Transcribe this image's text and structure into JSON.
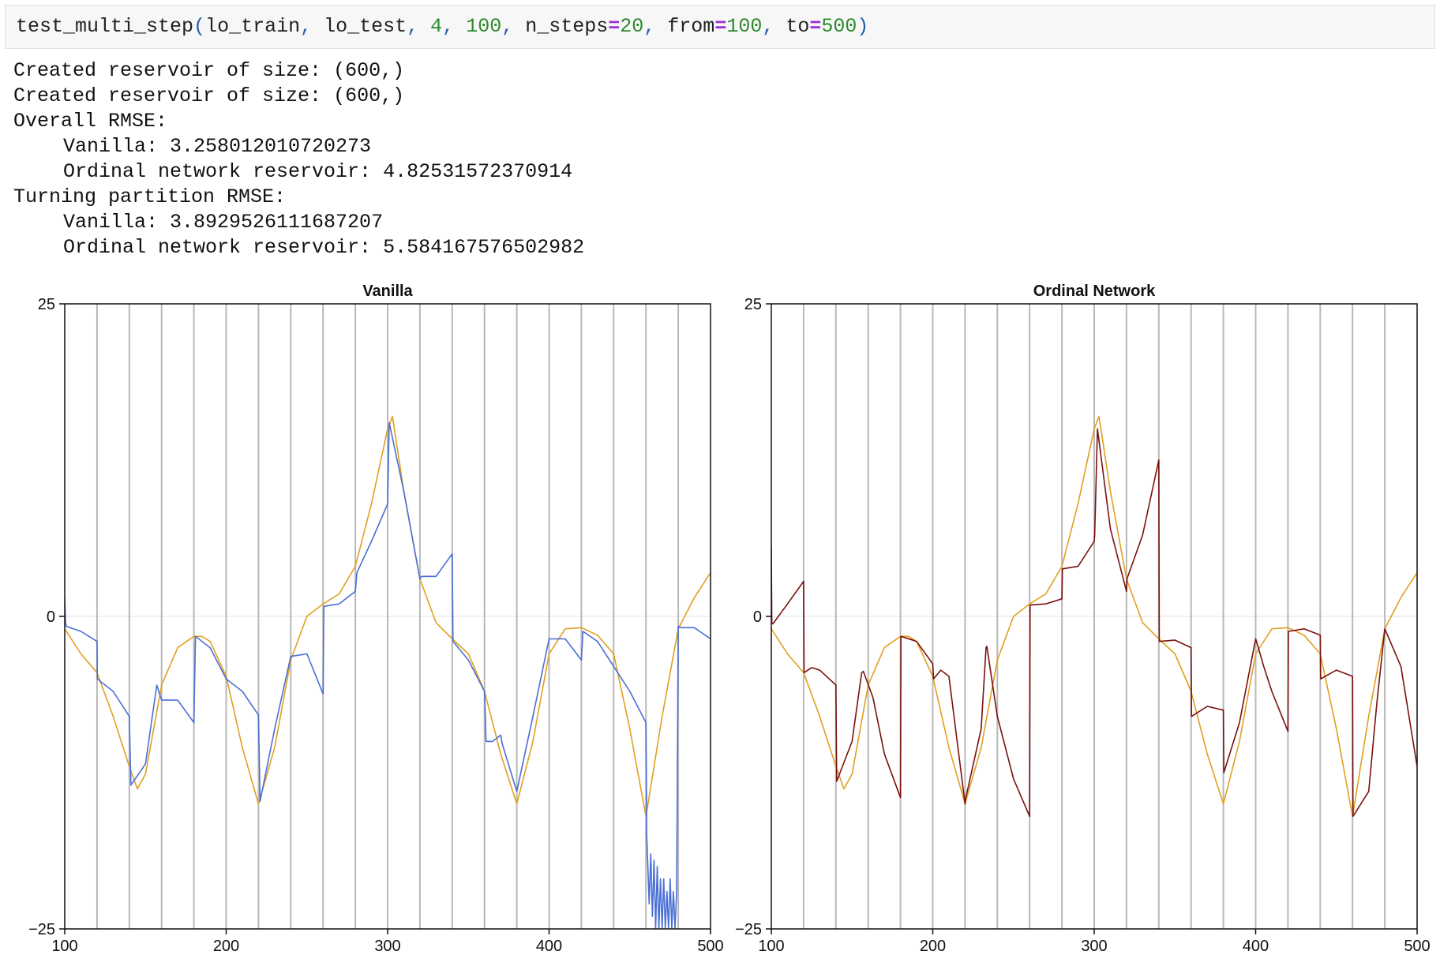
{
  "cell": {
    "code_tokens": [
      {
        "t": "test_multi_step",
        "c": "name"
      },
      {
        "t": "(",
        "c": "paren"
      },
      {
        "t": "lo_train",
        "c": "name"
      },
      {
        "t": ", ",
        "c": "punct"
      },
      {
        "t": "lo_test",
        "c": "name"
      },
      {
        "t": ", ",
        "c": "punct"
      },
      {
        "t": "4",
        "c": "num"
      },
      {
        "t": ", ",
        "c": "punct"
      },
      {
        "t": "100",
        "c": "num"
      },
      {
        "t": ", ",
        "c": "punct"
      },
      {
        "t": "n_steps",
        "c": "name"
      },
      {
        "t": "=",
        "c": "op"
      },
      {
        "t": "20",
        "c": "num"
      },
      {
        "t": ", ",
        "c": "punct"
      },
      {
        "t": "from",
        "c": "name"
      },
      {
        "t": "=",
        "c": "op"
      },
      {
        "t": "100",
        "c": "num"
      },
      {
        "t": ", ",
        "c": "punct"
      },
      {
        "t": "to",
        "c": "name"
      },
      {
        "t": "=",
        "c": "op"
      },
      {
        "t": "500",
        "c": "num"
      },
      {
        "t": ")",
        "c": "paren"
      }
    ]
  },
  "output": {
    "lines": [
      {
        "text": "Created reservoir of size: (600,)",
        "indent": false
      },
      {
        "text": "Created reservoir of size: (600,)",
        "indent": false
      },
      {
        "text": "Overall RMSE:",
        "indent": false
      },
      {
        "text": "Vanilla: 3.258012010720273",
        "indent": true
      },
      {
        "text": "Ordinal network reservoir: 4.82531572370914",
        "indent": true
      },
      {
        "text": "Turning partition RMSE:",
        "indent": false
      },
      {
        "text": "Vanilla: 3.8929526111687207",
        "indent": true
      },
      {
        "text": "Ordinal network reservoir: 5.584167576502982",
        "indent": true
      }
    ]
  },
  "colors": {
    "truth": "#e0a020",
    "vanilla": "#4a6fd4",
    "ordinal": "#7a1010",
    "vline": "#b8b8b8",
    "zero": "#e0e0e0",
    "axis": "#111111"
  },
  "chart_data": [
    {
      "type": "line",
      "title": "Vanilla",
      "xlim": [
        100,
        500
      ],
      "ylim": [
        -25,
        25
      ],
      "xticks": [
        100,
        200,
        300,
        400,
        500
      ],
      "yticks": [
        -25,
        0,
        25
      ],
      "yticklabels": [
        "−25",
        "0",
        "25"
      ],
      "vlines": [
        120,
        140,
        160,
        180,
        200,
        220,
        240,
        260,
        280,
        300,
        320,
        340,
        360,
        380,
        400,
        420,
        440,
        460,
        480
      ],
      "grid": "vertical lines every 20 steps",
      "series": [
        {
          "role": "truth",
          "x": [
            100,
            110,
            120,
            130,
            140,
            145,
            150,
            160,
            170,
            180,
            185,
            190,
            200,
            210,
            220,
            230,
            240,
            250,
            260,
            270,
            280,
            290,
            300,
            303,
            310,
            320,
            330,
            340,
            350,
            360,
            370,
            380,
            390,
            400,
            410,
            420,
            430,
            440,
            450,
            460,
            470,
            480,
            490,
            500
          ],
          "y": [
            -1,
            -3,
            -4.5,
            -8,
            -12,
            -13.8,
            -12.6,
            -5.5,
            -2.5,
            -1.6,
            -1.6,
            -2,
            -4.8,
            -10.5,
            -15,
            -10.5,
            -3.5,
            0,
            1,
            1.8,
            4,
            9,
            15,
            16,
            10,
            3,
            -0.5,
            -1.8,
            -3,
            -6,
            -11,
            -15,
            -10,
            -3,
            -1,
            -0.9,
            -1.5,
            -3,
            -9,
            -16,
            -8,
            -1,
            1.5,
            3.5
          ]
        },
        {
          "role": "prediction",
          "x": [
            100,
            100.5,
            101,
            110,
            120,
            120.2,
            130,
            140,
            141,
            150,
            157,
            160,
            170,
            180,
            181,
            190,
            200,
            210,
            220,
            221,
            230,
            240,
            250,
            260,
            260.5,
            270,
            280,
            281,
            290,
            300,
            301,
            310,
            320,
            321,
            330,
            340,
            340.5,
            350,
            360,
            361,
            365,
            370,
            371,
            380,
            390,
            400,
            410,
            420,
            421,
            430,
            440,
            450,
            460,
            460.5,
            462,
            463,
            464,
            465,
            466,
            467,
            468,
            469,
            470,
            471,
            472,
            473,
            474,
            475,
            476,
            477,
            478,
            479,
            480,
            482,
            490,
            500
          ],
          "y": [
            1.5,
            -0.5,
            -0.8,
            -1.2,
            -2,
            -5,
            -6,
            -8,
            -13.5,
            -11.8,
            -5.5,
            -6.7,
            -6.7,
            -8.5,
            -1.6,
            -2.5,
            -5,
            -6,
            -7.9,
            -14.8,
            -9,
            -3.2,
            -3,
            -6.2,
            0.8,
            1,
            2,
            3.5,
            6,
            9,
            15.5,
            10,
            3,
            3.2,
            3.2,
            5,
            -2,
            -3.5,
            -6,
            -10,
            -10,
            -9.5,
            -10.2,
            -14,
            -8,
            -1.8,
            -1.8,
            -3.5,
            -1.2,
            -2,
            -4,
            -6,
            -8.5,
            -17.5,
            -23,
            -19,
            -24,
            -19.5,
            -25,
            -20,
            -25,
            -21,
            -25,
            -21,
            -25,
            -22,
            -25,
            -21,
            -25,
            -22,
            -25,
            -22,
            -0.8,
            -0.9,
            -0.9,
            -1.8
          ]
        }
      ]
    },
    {
      "type": "line",
      "title": "Ordinal Network",
      "xlim": [
        100,
        500
      ],
      "ylim": [
        -25,
        25
      ],
      "xticks": [
        100,
        200,
        300,
        400,
        500
      ],
      "yticks": [
        -25,
        0,
        25
      ],
      "yticklabels": [
        "−25",
        "0",
        "25"
      ],
      "vlines": [
        120,
        140,
        160,
        180,
        200,
        220,
        240,
        260,
        280,
        300,
        320,
        340,
        360,
        380,
        400,
        420,
        440,
        460,
        480
      ],
      "grid": "vertical lines every 20 steps",
      "series": [
        {
          "role": "truth",
          "x": [
            100,
            110,
            120,
            130,
            140,
            145,
            150,
            160,
            170,
            180,
            185,
            190,
            200,
            210,
            220,
            230,
            240,
            250,
            260,
            270,
            280,
            290,
            300,
            303,
            310,
            320,
            330,
            340,
            350,
            360,
            370,
            380,
            390,
            400,
            410,
            420,
            430,
            440,
            450,
            460,
            470,
            480,
            490,
            500
          ],
          "y": [
            -1,
            -3,
            -4.5,
            -8,
            -12,
            -13.8,
            -12.6,
            -5.5,
            -2.5,
            -1.6,
            -1.6,
            -2,
            -4.8,
            -10.5,
            -15,
            -10.5,
            -3.5,
            0,
            1,
            1.8,
            4,
            9,
            15,
            16,
            10,
            3,
            -0.5,
            -1.8,
            -3,
            -6,
            -11,
            -15,
            -10,
            -3,
            -1,
            -0.9,
            -1.5,
            -3,
            -9,
            -16,
            -8,
            -1,
            1.5,
            3.5
          ]
        },
        {
          "role": "prediction",
          "x": [
            100,
            100.3,
            101,
            110,
            120,
            120.3,
            125,
            130,
            140,
            140.5,
            150,
            156,
            157,
            163,
            170,
            180,
            180.3,
            190,
            200,
            200.5,
            205,
            210,
            220,
            220.5,
            230,
            233,
            233.5,
            240,
            250,
            260,
            260.3,
            270,
            280,
            280.3,
            290,
            300,
            300.3,
            302,
            310,
            320,
            320.3,
            330,
            340,
            340.3,
            350,
            360,
            360.3,
            370,
            380,
            380.3,
            390,
            400,
            400.3,
            405,
            410,
            420,
            420.3,
            430,
            440,
            440.3,
            450,
            460,
            460.3,
            470,
            475,
            480,
            490,
            500
          ],
          "y": [
            5.5,
            -0.5,
            -0.6,
            1,
            2.8,
            -4.5,
            -4.1,
            -4.3,
            -5.5,
            -13.2,
            -10,
            -4.5,
            -4.4,
            -6.5,
            -11,
            -14.5,
            -1.6,
            -2,
            -3.8,
            -5,
            -4.3,
            -4.8,
            -15,
            -14.5,
            -9,
            -2.5,
            -2.4,
            -8,
            -13,
            -16,
            0.9,
            1,
            1.4,
            3.8,
            4,
            6,
            6.5,
            15,
            7,
            2,
            3,
            6.5,
            12.5,
            -2,
            -1.9,
            -2.5,
            -8,
            -7.2,
            -7.5,
            -12.5,
            -8.5,
            -1.8,
            -1.9,
            -4,
            -6,
            -9.2,
            -1.2,
            -1,
            -1.5,
            -5,
            -4.3,
            -4.8,
            -16,
            -14,
            -7,
            -1,
            -4,
            -12
          ]
        }
      ]
    }
  ]
}
